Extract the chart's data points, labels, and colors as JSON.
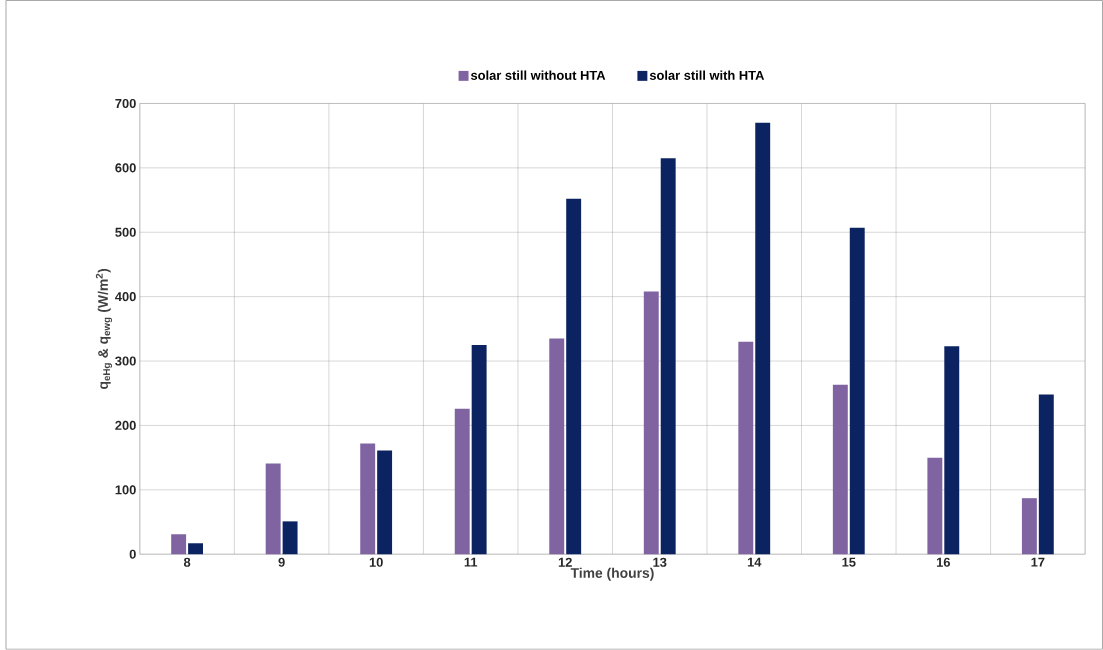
{
  "chart_data": {
    "type": "bar",
    "xlabel": "Time (hours)",
    "ylabel": "q$_{eHg}$ & q$_{ewg}$ (W/m$^{2}$)",
    "categories": [
      "8",
      "9",
      "10",
      "11",
      "12",
      "13",
      "14",
      "15",
      "16",
      "17"
    ],
    "series": [
      {
        "name": "solar still without HTA",
        "color": "#8064a2",
        "values": [
          31,
          141,
          172,
          226,
          335,
          408,
          330,
          263,
          150,
          87
        ]
      },
      {
        "name": "solar still with HTA",
        "color": "#0c2361",
        "values": [
          17,
          51,
          161,
          325,
          552,
          615,
          670,
          507,
          323,
          248
        ]
      }
    ],
    "ylim": [
      0,
      700
    ],
    "yticks": [
      0,
      100,
      200,
      300,
      400,
      500,
      600,
      700
    ],
    "grid": true,
    "legend": "top"
  }
}
